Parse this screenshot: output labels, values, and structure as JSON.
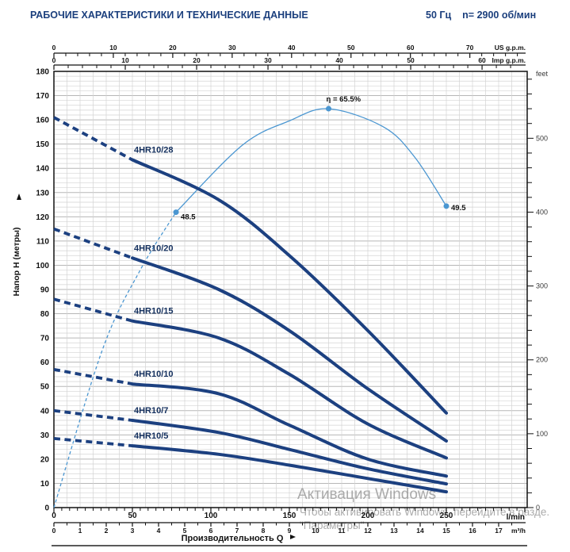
{
  "header": {
    "title": "РАБОЧИЕ ХАРАКТЕРИСТИКИ И ТЕХНИЧЕСКИЕ ДАННЫЕ",
    "frequency": "50 Гц",
    "speed": "n= 2900 об/мин"
  },
  "watermark": {
    "line1": "Активация Windows",
    "line2": "Чтобы активировать Windows, перейдите в разде.",
    "line3": "\"Параметры\""
  },
  "chart_data": {
    "type": "line",
    "title": "РАБОЧИЕ ХАРАКТЕРИСТИКИ И ТЕХНИЧЕСКИЕ ДАННЫЕ",
    "xlabel": "Производительность Q",
    "ylabel": "Напор H (метры)",
    "axes": {
      "lmin": {
        "label": "l/min",
        "labels": [
          0,
          50,
          100,
          150,
          200,
          250
        ],
        "max": 300,
        "minor_step": 5
      },
      "m3h": {
        "label": "m³/h",
        "labels": [
          0,
          1,
          2,
          3,
          4,
          5,
          6,
          7,
          8,
          9,
          10,
          11,
          12,
          13,
          14,
          15,
          16,
          17
        ],
        "minor_step": 0.5,
        "max": 18
      },
      "us_gpm": {
        "label": "US g.p.m.",
        "labels": [
          0,
          10,
          20,
          30,
          40,
          50,
          60,
          70
        ],
        "minor_step": 2,
        "max": 78
      },
      "imp_gpm": {
        "label": "Imp g.p.m.",
        "labels": [
          0,
          10,
          20,
          30,
          40,
          50,
          60
        ],
        "minor_step": 2,
        "max": 66
      },
      "meters": {
        "labels": [
          180,
          170,
          160,
          150,
          140,
          130,
          120,
          110,
          100,
          90,
          80,
          70,
          60,
          50,
          40,
          30,
          20,
          10,
          0
        ],
        "min": 0,
        "max": 180
      },
      "feet": {
        "label": "feet",
        "labels": [
          0,
          100,
          200,
          300,
          400,
          500
        ],
        "minor_step": 20,
        "max": 580
      }
    },
    "series": [
      {
        "name": "4HR10/28",
        "dashed": [
          [
            0,
            161
          ],
          [
            50,
            143.5
          ]
        ],
        "solid": [
          [
            50,
            143.5
          ],
          [
            105,
            127
          ],
          [
            150,
            104
          ],
          [
            200,
            73
          ],
          [
            250,
            39
          ]
        ]
      },
      {
        "name": "4HR10/20",
        "dashed": [
          [
            0,
            115
          ],
          [
            50,
            103
          ]
        ],
        "solid": [
          [
            50,
            103
          ],
          [
            105,
            90
          ],
          [
            150,
            73
          ],
          [
            200,
            49
          ],
          [
            250,
            27.5
          ]
        ]
      },
      {
        "name": "4HR10/15",
        "dashed": [
          [
            0,
            86
          ],
          [
            50,
            77
          ]
        ],
        "solid": [
          [
            50,
            77
          ],
          [
            105,
            70
          ],
          [
            150,
            55
          ],
          [
            200,
            34.5
          ],
          [
            250,
            20.5
          ]
        ]
      },
      {
        "name": "4HR10/10",
        "dashed": [
          [
            0,
            57
          ],
          [
            50,
            51
          ]
        ],
        "solid": [
          [
            50,
            51
          ],
          [
            105,
            47
          ],
          [
            150,
            34
          ],
          [
            200,
            20
          ],
          [
            250,
            13
          ]
        ]
      },
      {
        "name": "4HR10/7",
        "dashed": [
          [
            0,
            40
          ],
          [
            50,
            36
          ]
        ],
        "solid": [
          [
            50,
            36
          ],
          [
            105,
            31
          ],
          [
            150,
            24
          ],
          [
            200,
            16
          ],
          [
            250,
            9.8
          ]
        ]
      },
      {
        "name": "4HR10/5",
        "dashed": [
          [
            0,
            28.5
          ],
          [
            50,
            25.5
          ]
        ],
        "solid": [
          [
            50,
            25.5
          ],
          [
            105,
            22
          ],
          [
            150,
            17.5
          ],
          [
            200,
            12
          ],
          [
            250,
            6.5
          ]
        ]
      }
    ],
    "efficiency": {
      "label": "η = 65.5%",
      "meters_per_percent": 2.513,
      "bep": {
        "q": 175,
        "eta": 65.5
      },
      "range_points": [
        {
          "q": 77.8,
          "eta": 48.5,
          "label": "48.5"
        },
        {
          "q": 250,
          "eta": 49.5,
          "label": "49.5"
        }
      ],
      "dashed": [
        [
          0,
          0
        ],
        [
          31,
          26
        ],
        [
          55,
          39
        ],
        [
          77.8,
          48.5
        ]
      ],
      "solid": [
        [
          77.8,
          48.5
        ],
        [
          120,
          59.5
        ],
        [
          150,
          63.5
        ],
        [
          175,
          65.5
        ],
        [
          210,
          62.5
        ],
        [
          230,
          57.5
        ],
        [
          250,
          49.5
        ]
      ]
    }
  },
  "colors": {
    "navy": "#1b3f7d",
    "curve_navy": "#1c4080",
    "light_blue": "#4a96d1",
    "grid_minor": "#d3d3d3",
    "grid_major": "#b7b7b7",
    "axis": "#1a1a1a",
    "feet_text": "#3a3a3a",
    "watermark": "#969696"
  }
}
